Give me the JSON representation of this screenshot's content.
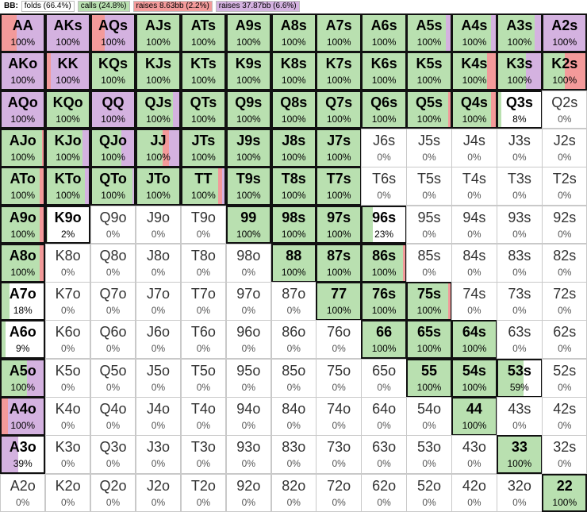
{
  "legend": {
    "label": "BB:",
    "items": [
      {
        "text": "folds (66.4%)",
        "color": "#ffffff"
      },
      {
        "text": "calls (24.8%)",
        "color": "#b9e0b0"
      },
      {
        "text": "raises 8.63bb (2.2%)",
        "color": "#f39a9a"
      },
      {
        "text": "raises 37.87bb (6.6%)",
        "color": "#d4b2e0"
      }
    ]
  },
  "colors": {
    "call": "#b9e0b0",
    "raise_small": "#f39a9a",
    "raise_big": "#d4b2e0",
    "fold": "#ffffff"
  },
  "grid": {
    "rows": [
      [
        [
          "AA",
          "100%",
          0,
          35,
          65
        ],
        [
          "AKs",
          "100%",
          0,
          0,
          100
        ],
        [
          "AQs",
          "100%",
          0,
          30,
          70
        ],
        [
          "AJs",
          "100%",
          100,
          0,
          0
        ],
        [
          "ATs",
          "100%",
          100,
          0,
          0
        ],
        [
          "A9s",
          "100%",
          100,
          0,
          0
        ],
        [
          "A8s",
          "100%",
          100,
          0,
          0
        ],
        [
          "A7s",
          "100%",
          100,
          0,
          0
        ],
        [
          "A6s",
          "100%",
          100,
          0,
          0
        ],
        [
          "A5s",
          "100%",
          90,
          0,
          10
        ],
        [
          "A4s",
          "100%",
          90,
          0,
          10
        ],
        [
          "A3s",
          "100%",
          85,
          0,
          15
        ],
        [
          "A2s",
          "100%",
          0,
          0,
          100
        ]
      ],
      [
        [
          "AKo",
          "100%",
          0,
          0,
          100
        ],
        [
          "KK",
          "100%",
          0,
          10,
          90
        ],
        [
          "KQs",
          "100%",
          100,
          0,
          0
        ],
        [
          "KJs",
          "100%",
          100,
          0,
          0
        ],
        [
          "KTs",
          "100%",
          100,
          0,
          0
        ],
        [
          "K9s",
          "100%",
          100,
          0,
          0
        ],
        [
          "K8s",
          "100%",
          100,
          0,
          0
        ],
        [
          "K7s",
          "100%",
          100,
          0,
          0
        ],
        [
          "K6s",
          "100%",
          100,
          0,
          0
        ],
        [
          "K5s",
          "100%",
          100,
          0,
          0
        ],
        [
          "K4s",
          "100%",
          80,
          20,
          0
        ],
        [
          "K3s",
          "100%",
          65,
          0,
          35
        ],
        [
          "K2s",
          "100%",
          50,
          50,
          0
        ]
      ],
      [
        [
          "AQo",
          "100%",
          0,
          0,
          100
        ],
        [
          "KQo",
          "100%",
          100,
          0,
          0
        ],
        [
          "QQ",
          "100%",
          0,
          0,
          100
        ],
        [
          "QJs",
          "100%",
          85,
          0,
          15
        ],
        [
          "QTs",
          "100%",
          100,
          0,
          0
        ],
        [
          "Q9s",
          "100%",
          100,
          0,
          0
        ],
        [
          "Q8s",
          "100%",
          100,
          0,
          0
        ],
        [
          "Q7s",
          "100%",
          100,
          0,
          0
        ],
        [
          "Q6s",
          "100%",
          100,
          0,
          0
        ],
        [
          "Q5s",
          "100%",
          95,
          5,
          0
        ],
        [
          "Q4s",
          "100%",
          90,
          10,
          0
        ],
        [
          "Q3s",
          "8%",
          8,
          0,
          0
        ],
        [
          "Q2s",
          "0%",
          0,
          0,
          0
        ]
      ],
      [
        [
          "AJo",
          "100%",
          95,
          5,
          0
        ],
        [
          "KJo",
          "100%",
          85,
          0,
          15
        ],
        [
          "QJo",
          "100%",
          70,
          0,
          30
        ],
        [
          "JJ",
          "100%",
          60,
          15,
          25
        ],
        [
          "JTs",
          "100%",
          100,
          0,
          0
        ],
        [
          "J9s",
          "100%",
          100,
          0,
          0
        ],
        [
          "J8s",
          "100%",
          100,
          0,
          0
        ],
        [
          "J7s",
          "100%",
          100,
          0,
          0
        ],
        [
          "J6s",
          "0%",
          0,
          0,
          0
        ],
        [
          "J5s",
          "0%",
          0,
          0,
          0
        ],
        [
          "J4s",
          "0%",
          0,
          0,
          0
        ],
        [
          "J3s",
          "0%",
          0,
          0,
          0
        ],
        [
          "J2s",
          "0%",
          0,
          0,
          0
        ]
      ],
      [
        [
          "ATo",
          "100%",
          90,
          10,
          0
        ],
        [
          "KTo",
          "100%",
          90,
          0,
          10
        ],
        [
          "QTo",
          "100%",
          95,
          0,
          5
        ],
        [
          "JTo",
          "100%",
          100,
          0,
          0
        ],
        [
          "TT",
          "100%",
          85,
          10,
          5
        ],
        [
          "T9s",
          "100%",
          100,
          0,
          0
        ],
        [
          "T8s",
          "100%",
          100,
          0,
          0
        ],
        [
          "T7s",
          "100%",
          100,
          0,
          0
        ],
        [
          "T6s",
          "0%",
          0,
          0,
          0
        ],
        [
          "T5s",
          "0%",
          0,
          0,
          0
        ],
        [
          "T4s",
          "0%",
          0,
          0,
          0
        ],
        [
          "T3s",
          "0%",
          0,
          0,
          0
        ],
        [
          "T2s",
          "0%",
          0,
          0,
          0
        ]
      ],
      [
        [
          "A9o",
          "100%",
          90,
          10,
          0
        ],
        [
          "K9o",
          "2%",
          2,
          0,
          0
        ],
        [
          "Q9o",
          "0%",
          0,
          0,
          0
        ],
        [
          "J9o",
          "0%",
          0,
          0,
          0
        ],
        [
          "T9o",
          "0%",
          0,
          0,
          0
        ],
        [
          "99",
          "100%",
          100,
          0,
          0
        ],
        [
          "98s",
          "100%",
          100,
          0,
          0
        ],
        [
          "97s",
          "100%",
          100,
          0,
          0
        ],
        [
          "96s",
          "23%",
          23,
          0,
          0
        ],
        [
          "95s",
          "0%",
          0,
          0,
          0
        ],
        [
          "94s",
          "0%",
          0,
          0,
          0
        ],
        [
          "93s",
          "0%",
          0,
          0,
          0
        ],
        [
          "92s",
          "0%",
          0,
          0,
          0
        ]
      ],
      [
        [
          "A8o",
          "100%",
          90,
          10,
          0
        ],
        [
          "K8o",
          "0%",
          0,
          0,
          0
        ],
        [
          "Q8o",
          "0%",
          0,
          0,
          0
        ],
        [
          "J8o",
          "0%",
          0,
          0,
          0
        ],
        [
          "T8o",
          "0%",
          0,
          0,
          0
        ],
        [
          "98o",
          "0%",
          0,
          0,
          0
        ],
        [
          "88",
          "100%",
          100,
          0,
          0
        ],
        [
          "87s",
          "100%",
          100,
          0,
          0
        ],
        [
          "86s",
          "100%",
          95,
          5,
          0
        ],
        [
          "85s",
          "0%",
          0,
          0,
          0
        ],
        [
          "84s",
          "0%",
          0,
          0,
          0
        ],
        [
          "83s",
          "0%",
          0,
          0,
          0
        ],
        [
          "82s",
          "0%",
          0,
          0,
          0
        ]
      ],
      [
        [
          "A7o",
          "18%",
          18,
          0,
          0
        ],
        [
          "K7o",
          "0%",
          0,
          0,
          0
        ],
        [
          "Q7o",
          "0%",
          0,
          0,
          0
        ],
        [
          "J7o",
          "0%",
          0,
          0,
          0
        ],
        [
          "T7o",
          "0%",
          0,
          0,
          0
        ],
        [
          "97o",
          "0%",
          0,
          0,
          0
        ],
        [
          "87o",
          "0%",
          0,
          0,
          0
        ],
        [
          "77",
          "100%",
          100,
          0,
          0
        ],
        [
          "76s",
          "100%",
          100,
          0,
          0
        ],
        [
          "75s",
          "100%",
          95,
          5,
          0
        ],
        [
          "74s",
          "0%",
          0,
          0,
          0
        ],
        [
          "73s",
          "0%",
          0,
          0,
          0
        ],
        [
          "72s",
          "0%",
          0,
          0,
          0
        ]
      ],
      [
        [
          "A6o",
          "9%",
          9,
          0,
          0
        ],
        [
          "K6o",
          "0%",
          0,
          0,
          0
        ],
        [
          "Q6o",
          "0%",
          0,
          0,
          0
        ],
        [
          "J6o",
          "0%",
          0,
          0,
          0
        ],
        [
          "T6o",
          "0%",
          0,
          0,
          0
        ],
        [
          "96o",
          "0%",
          0,
          0,
          0
        ],
        [
          "86o",
          "0%",
          0,
          0,
          0
        ],
        [
          "76o",
          "0%",
          0,
          0,
          0
        ],
        [
          "66",
          "100%",
          100,
          0,
          0
        ],
        [
          "65s",
          "100%",
          100,
          0,
          0
        ],
        [
          "64s",
          "100%",
          100,
          0,
          0
        ],
        [
          "63s",
          "0%",
          0,
          0,
          0
        ],
        [
          "62s",
          "0%",
          0,
          0,
          0
        ]
      ],
      [
        [
          "A5o",
          "100%",
          60,
          0,
          40
        ],
        [
          "K5o",
          "0%",
          0,
          0,
          0
        ],
        [
          "Q5o",
          "0%",
          0,
          0,
          0
        ],
        [
          "J5o",
          "0%",
          0,
          0,
          0
        ],
        [
          "T5o",
          "0%",
          0,
          0,
          0
        ],
        [
          "95o",
          "0%",
          0,
          0,
          0
        ],
        [
          "85o",
          "0%",
          0,
          0,
          0
        ],
        [
          "75o",
          "0%",
          0,
          0,
          0
        ],
        [
          "65o",
          "0%",
          0,
          0,
          0
        ],
        [
          "55",
          "100%",
          100,
          0,
          0
        ],
        [
          "54s",
          "100%",
          100,
          0,
          0
        ],
        [
          "53s",
          "59%",
          59,
          0,
          0
        ],
        [
          "52s",
          "0%",
          0,
          0,
          0
        ]
      ],
      [
        [
          "A4o",
          "100%",
          0,
          15,
          85
        ],
        [
          "K4o",
          "0%",
          0,
          0,
          0
        ],
        [
          "Q4o",
          "0%",
          0,
          0,
          0
        ],
        [
          "J4o",
          "0%",
          0,
          0,
          0
        ],
        [
          "T4o",
          "0%",
          0,
          0,
          0
        ],
        [
          "94o",
          "0%",
          0,
          0,
          0
        ],
        [
          "84o",
          "0%",
          0,
          0,
          0
        ],
        [
          "74o",
          "0%",
          0,
          0,
          0
        ],
        [
          "64o",
          "0%",
          0,
          0,
          0
        ],
        [
          "54o",
          "0%",
          0,
          0,
          0
        ],
        [
          "44",
          "100%",
          100,
          0,
          0
        ],
        [
          "43s",
          "0%",
          0,
          0,
          0
        ],
        [
          "42s",
          "0%",
          0,
          0,
          0
        ]
      ],
      [
        [
          "A3o",
          "39%",
          0,
          0,
          39
        ],
        [
          "K3o",
          "0%",
          0,
          0,
          0
        ],
        [
          "Q3o",
          "0%",
          0,
          0,
          0
        ],
        [
          "J3o",
          "0%",
          0,
          0,
          0
        ],
        [
          "T3o",
          "0%",
          0,
          0,
          0
        ],
        [
          "93o",
          "0%",
          0,
          0,
          0
        ],
        [
          "83o",
          "0%",
          0,
          0,
          0
        ],
        [
          "73o",
          "0%",
          0,
          0,
          0
        ],
        [
          "63o",
          "0%",
          0,
          0,
          0
        ],
        [
          "53o",
          "0%",
          0,
          0,
          0
        ],
        [
          "43o",
          "0%",
          0,
          0,
          0
        ],
        [
          "33",
          "100%",
          100,
          0,
          0
        ],
        [
          "32s",
          "0%",
          0,
          0,
          0
        ]
      ],
      [
        [
          "A2o",
          "0%",
          0,
          0,
          0
        ],
        [
          "K2o",
          "0%",
          0,
          0,
          0
        ],
        [
          "Q2o",
          "0%",
          0,
          0,
          0
        ],
        [
          "J2o",
          "0%",
          0,
          0,
          0
        ],
        [
          "T2o",
          "0%",
          0,
          0,
          0
        ],
        [
          "92o",
          "0%",
          0,
          0,
          0
        ],
        [
          "82o",
          "0%",
          0,
          0,
          0
        ],
        [
          "72o",
          "0%",
          0,
          0,
          0
        ],
        [
          "62o",
          "0%",
          0,
          0,
          0
        ],
        [
          "52o",
          "0%",
          0,
          0,
          0
        ],
        [
          "42o",
          "0%",
          0,
          0,
          0
        ],
        [
          "32o",
          "0%",
          0,
          0,
          0
        ],
        [
          "22",
          "100%",
          100,
          0,
          0
        ]
      ]
    ]
  }
}
